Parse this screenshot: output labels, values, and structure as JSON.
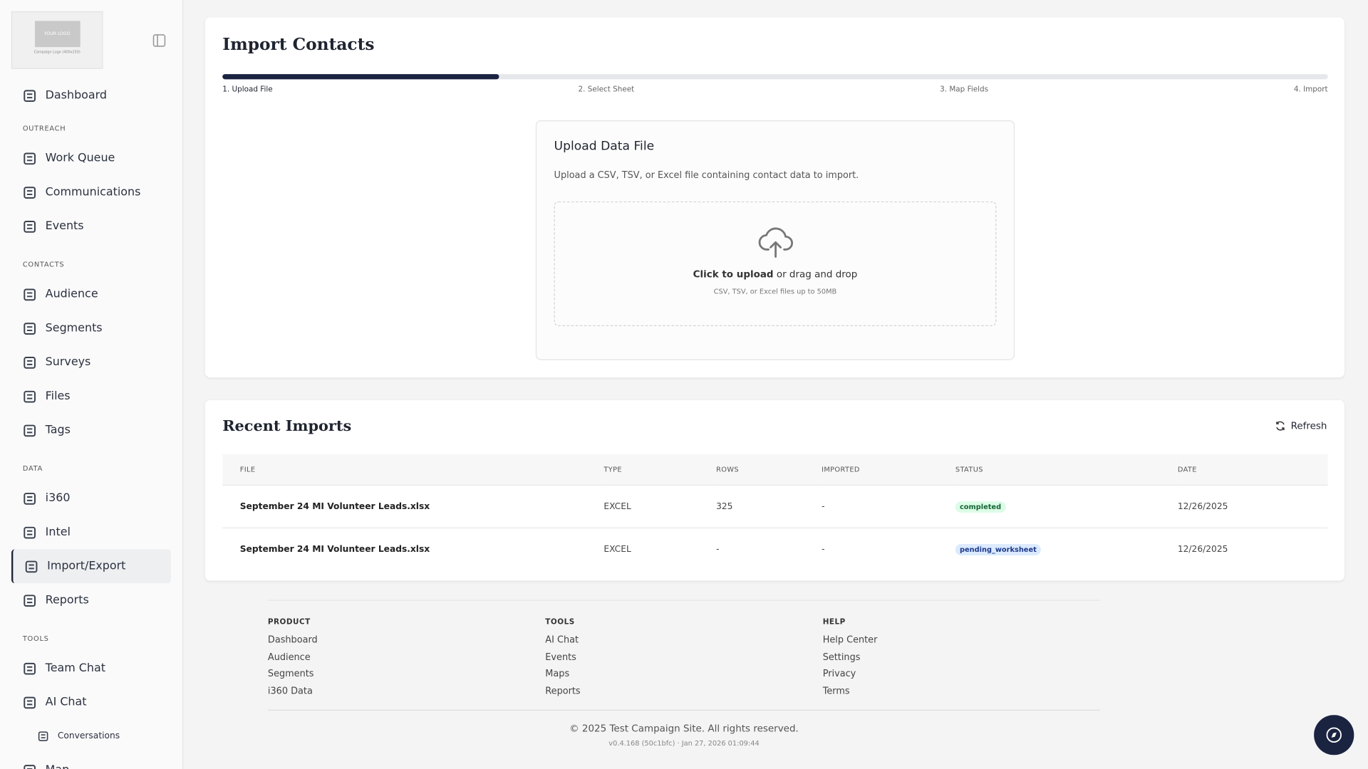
{
  "sidebar": {
    "logo": {
      "title": "YOUR LOGO",
      "caption": "Campaign Logo (400x250)"
    },
    "top": "Dashboard",
    "sections": [
      {
        "heading": "OUTREACH",
        "items": [
          "Work Queue",
          "Communications",
          "Events"
        ]
      },
      {
        "heading": "CONTACTS",
        "items": [
          "Audience",
          "Segments",
          "Surveys",
          "Files",
          "Tags"
        ]
      },
      {
        "heading": "DATA",
        "items": [
          "i360",
          "Intel",
          "Import/Export",
          "Reports"
        ]
      },
      {
        "heading": "TOOLS",
        "items": [
          "Team Chat",
          "AI Chat",
          "Conversations",
          "Map"
        ]
      }
    ]
  },
  "main": {
    "title": "Import Contacts",
    "steps": [
      "1. Upload File",
      "2. Select Sheet",
      "3. Map Fields",
      "4. Import"
    ],
    "upload": {
      "title": "Upload Data File",
      "description": "Upload a CSV, TSV, or Excel file containing contact data to import.",
      "click": "Click to upload",
      "drag": "or drag and drop",
      "hint": "CSV, TSV, or Excel files up to 50MB"
    },
    "recent": {
      "title": "Recent Imports",
      "refresh": "Refresh",
      "columns": [
        "FILE",
        "TYPE",
        "ROWS",
        "IMPORTED",
        "STATUS",
        "DATE"
      ],
      "rows": [
        [
          "September 24 MI Volunteer Leads.xlsx",
          "EXCEL",
          "325",
          "-",
          "completed",
          "12/26/2025"
        ],
        [
          "September 24 MI Volunteer Leads.xlsx",
          "EXCEL",
          "-",
          "-",
          "pending_worksheet",
          "12/26/2025"
        ]
      ]
    }
  },
  "footer": {
    "columns": [
      {
        "heading": "PRODUCT",
        "links": [
          "Dashboard",
          "Audience",
          "Segments",
          "i360 Data"
        ]
      },
      {
        "heading": "TOOLS",
        "links": [
          "AI Chat",
          "Events",
          "Maps",
          "Reports"
        ]
      },
      {
        "heading": "HELP",
        "links": [
          "Help Center",
          "Settings",
          "Privacy",
          "Terms"
        ]
      }
    ],
    "copyright": "© 2025 Test Campaign Site. All rights reserved.",
    "version": "v0.4.168 (50c1bfc) · Jan 27, 2026 01:09:44"
  }
}
